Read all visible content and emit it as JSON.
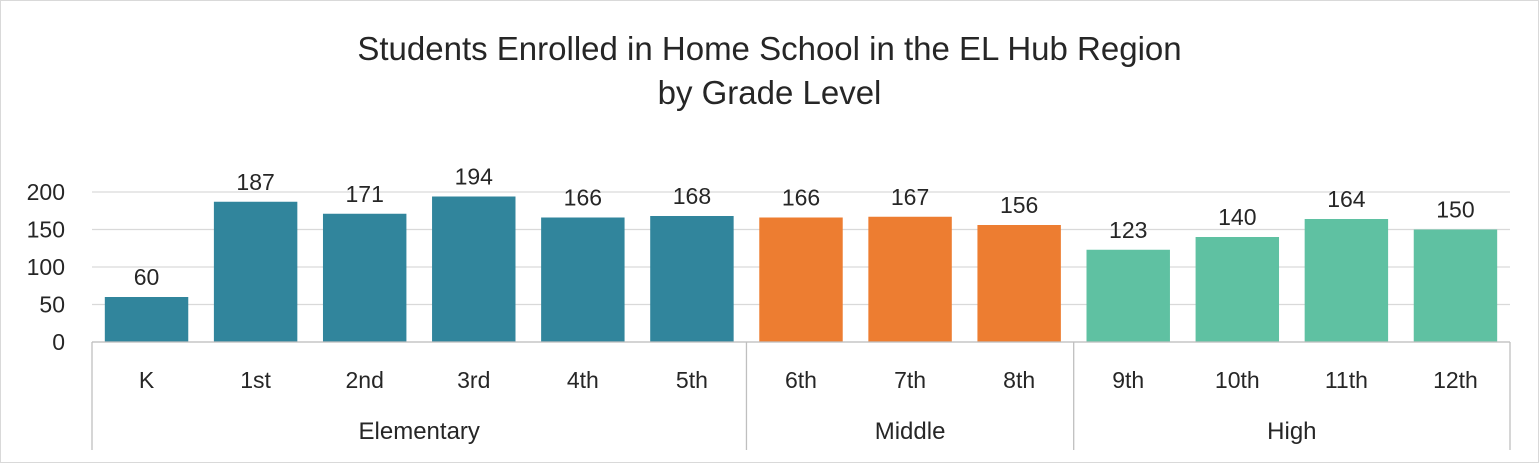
{
  "chart_data": {
    "type": "bar",
    "title": "Students Enrolled in Home School in the EL Hub Region",
    "subtitle": "by Grade Level",
    "categories": [
      "K",
      "1st",
      "2nd",
      "3rd",
      "4th",
      "5th",
      "6th",
      "7th",
      "8th",
      "9th",
      "10th",
      "11th",
      "12th"
    ],
    "values": [
      60,
      187,
      171,
      194,
      166,
      168,
      166,
      167,
      156,
      123,
      140,
      164,
      150
    ],
    "groups": [
      {
        "name": "Elementary",
        "categories": [
          "K",
          "1st",
          "2nd",
          "3rd",
          "4th",
          "5th"
        ],
        "color": "#31859c"
      },
      {
        "name": "Middle",
        "categories": [
          "6th",
          "7th",
          "8th"
        ],
        "color": "#ed7d31"
      },
      {
        "name": "High",
        "categories": [
          "9th",
          "10th",
          "11th",
          "12th"
        ],
        "color": "#5fc1a2"
      }
    ],
    "ylim": [
      0,
      200
    ],
    "yticks": [
      0,
      50,
      100,
      150,
      200
    ],
    "xlabel": "",
    "ylabel": "",
    "data_labels": true,
    "grid": true,
    "legend": "none"
  },
  "colors": {
    "gridline": "#d9d9d9",
    "axis": "#bfbfbf",
    "text": "#262626"
  }
}
